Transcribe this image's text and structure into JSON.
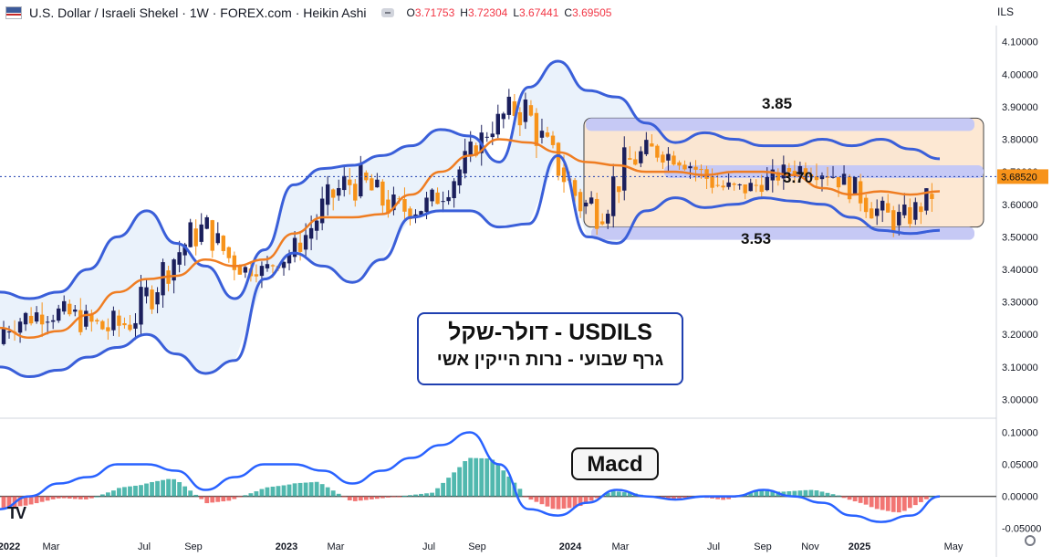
{
  "header": {
    "title": "U.S. Dollar / Israeli Shekel · 1W · FOREX.com · Heikin Ashi",
    "ohlc": [
      {
        "k": "O",
        "v": "3.71753"
      },
      {
        "k": "H",
        "v": "3.72304"
      },
      {
        "k": "L",
        "v": "3.67441"
      },
      {
        "k": "C",
        "v": "3.69505"
      }
    ],
    "currency": "ILS"
  },
  "annotation": {
    "line1": "USDILS - דולר-שקל",
    "line2": "גרף שבועי - נרות הייקין אשי"
  },
  "macd_label": "Macd",
  "levels": {
    "top": "3.85",
    "mid": "3.70",
    "bottom": "3.53"
  },
  "logo_text": "TV",
  "colors": {
    "bull": "#1b1f5c",
    "bear": "#f7931a",
    "band": "#3a5fd9",
    "ma": "#ef7d22",
    "hist_pos": "#26a69a",
    "hist_neg": "#ef5350",
    "macd_line": "#2962ff",
    "range_fill": "#fde4cc",
    "level_band": "#c6c9f5"
  },
  "chart_data": [
    {
      "type": "candlestick",
      "style": "heikin-ashi",
      "title": "U.S. Dollar / Israeli Shekel · 1W · FOREX.com · Heikin Ashi",
      "price_axis": [
        "4.10000",
        "4.00000",
        "3.90000",
        "3.80000",
        "3.70000",
        "3.60000",
        "3.50000",
        "3.40000",
        "3.30000",
        "3.20000",
        "3.10000",
        "3.00000"
      ],
      "ylim": [
        2.99,
        4.13
      ],
      "time_axis": [
        "2022",
        "Mar",
        "Jul",
        "Sep",
        "2023",
        "Mar",
        "Jul",
        "Sep",
        "2024",
        "Mar",
        "Jul",
        "Sep",
        "Nov",
        "2025",
        "May"
      ],
      "last_price": "3.68520",
      "series": [
        {
          "name": "Upper Bollinger Band",
          "values": [
            3.33,
            3.31,
            3.33,
            3.4,
            3.5,
            3.58,
            3.48,
            3.41,
            3.31,
            3.46,
            3.66,
            3.71,
            3.72,
            3.75,
            3.78,
            3.83,
            3.81,
            3.73,
            3.96,
            4.04,
            3.95,
            3.93,
            3.85,
            3.79,
            3.82,
            3.8,
            3.78,
            3.78,
            3.8,
            3.78,
            3.8,
            3.77,
            3.74
          ]
        },
        {
          "name": "Lower Bollinger Band",
          "values": [
            3.1,
            3.07,
            3.09,
            3.13,
            3.16,
            3.2,
            3.14,
            3.08,
            3.12,
            3.37,
            3.45,
            3.41,
            3.36,
            3.43,
            3.56,
            3.58,
            3.58,
            3.53,
            3.54,
            3.75,
            3.5,
            3.48,
            3.58,
            3.62,
            3.59,
            3.6,
            3.62,
            3.61,
            3.6,
            3.56,
            3.52,
            3.51,
            3.52
          ]
        },
        {
          "name": "Moving Average",
          "values": [
            3.22,
            3.19,
            3.21,
            3.26,
            3.33,
            3.37,
            3.38,
            3.43,
            3.41,
            3.43,
            3.51,
            3.56,
            3.56,
            3.57,
            3.63,
            3.7,
            3.75,
            3.8,
            3.79,
            3.76,
            3.73,
            3.72,
            3.7,
            3.7,
            3.69,
            3.7,
            3.7,
            3.69,
            3.65,
            3.63,
            3.64,
            3.63,
            3.64
          ]
        }
      ]
    },
    {
      "type": "bar",
      "title": "Macd",
      "value_axis": [
        "0.10000",
        "0.05000",
        "0.00000",
        "-0.05000"
      ],
      "ylim": [
        -0.052,
        0.105
      ],
      "series": [
        {
          "name": "MACD",
          "values": [
            -0.02,
            0.0,
            0.02,
            0.03,
            0.05,
            0.05,
            0.04,
            0.01,
            0.03,
            0.05,
            0.05,
            0.04,
            0.02,
            0.04,
            0.06,
            0.08,
            0.1,
            0.05,
            -0.02,
            -0.03,
            -0.01,
            0.01,
            0.0,
            -0.005,
            0.0,
            0.0,
            0.01,
            0.0,
            -0.01,
            -0.03,
            -0.04,
            -0.03,
            0.0
          ]
        }
      ]
    }
  ]
}
